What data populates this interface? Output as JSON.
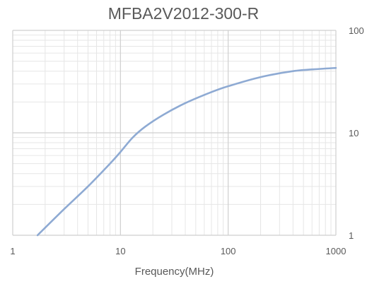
{
  "chart_data": {
    "type": "line",
    "title": "MFBA2V2012-300-R",
    "xlabel": "Frequency(MHz)",
    "ylabel": "",
    "x_scale": "log",
    "y_scale": "log",
    "xlim": [
      1,
      1000
    ],
    "ylim": [
      1,
      100
    ],
    "x_ticks": [
      "1",
      "10",
      "100",
      "1000"
    ],
    "y_ticks": [
      "1",
      "10",
      "100"
    ],
    "y_axis_side": "right",
    "grid": true,
    "line_color": "#8eaad3",
    "series": [
      {
        "x": [
          1.7,
          3,
          5,
          8,
          10,
          13,
          17,
          25,
          40,
          70,
          100,
          200,
          400,
          700,
          1000
        ],
        "y": [
          1,
          1.8,
          3,
          5,
          6.5,
          9,
          11.5,
          15,
          19.5,
          25,
          28.5,
          35,
          40,
          42,
          43
        ]
      }
    ]
  }
}
